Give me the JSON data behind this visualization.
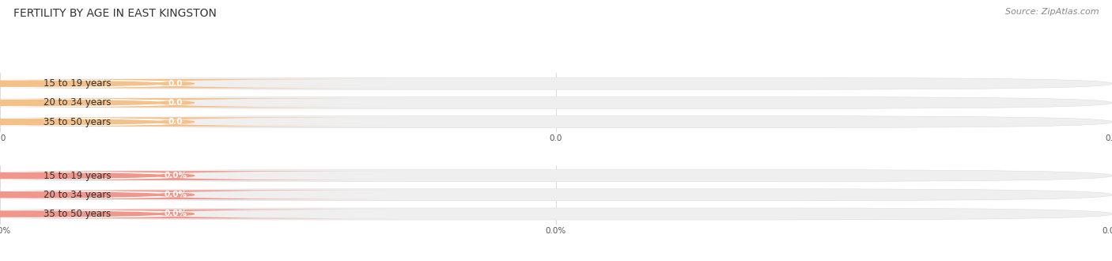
{
  "title": "FERTILITY BY AGE IN EAST KINGSTON",
  "source": "Source: ZipAtlas.com",
  "top_section": {
    "categories": [
      "15 to 19 years",
      "20 to 34 years",
      "35 to 50 years"
    ],
    "values": [
      0.0,
      0.0,
      0.0
    ],
    "bar_color": "#F5C18A",
    "circle_color": "#F5C18A",
    "value_label": "0.0",
    "axis_tick": "0.0"
  },
  "bottom_section": {
    "categories": [
      "15 to 19 years",
      "20 to 34 years",
      "35 to 50 years"
    ],
    "values": [
      0.0,
      0.0,
      0.0
    ],
    "bar_color": "#F0968A",
    "circle_color": "#F0968A",
    "value_label": "0.0%",
    "axis_tick": "0.0%"
  },
  "bg_color": "#FFFFFF",
  "bar_bg_color": "#EFEFEF",
  "figsize": [
    14.06,
    3.3
  ],
  "dpi": 100,
  "title_fontsize": 10,
  "label_fontsize": 8.5,
  "value_fontsize": 7.5,
  "source_fontsize": 8,
  "tick_fontsize": 7.5
}
